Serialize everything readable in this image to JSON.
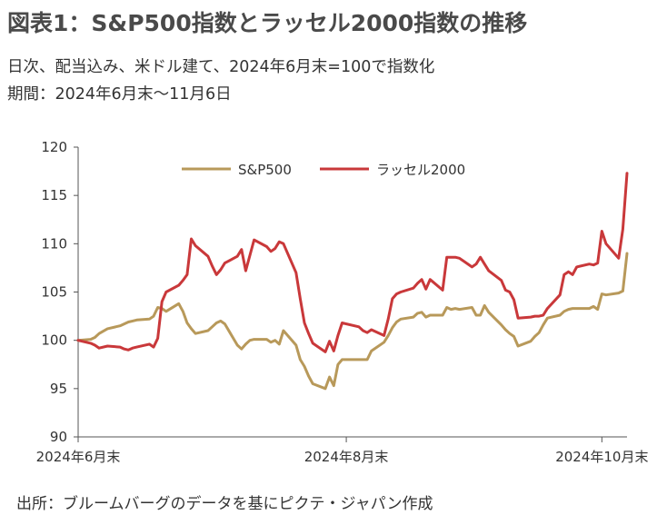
{
  "header": {
    "title": "図表1：S&P500指数とラッセル2000指数の推移",
    "subtitle1": "日次、配当込み、米ドル建て、2024年6月末=100で指数化",
    "subtitle2": "期間：2024年6月末～11月6日"
  },
  "footer": {
    "source": "出所：ブルームバーグのデータを基にピクテ・ジャパン作成"
  },
  "chart_data": {
    "type": "line",
    "title": "図表1：S&P500指数とラッセル2000指数の推移",
    "xlabel": "",
    "ylabel": "",
    "ylim": [
      90,
      120
    ],
    "yticks": [
      90,
      95,
      100,
      105,
      110,
      115,
      120
    ],
    "xlim": [
      "2024-06-28",
      "2024-11-06"
    ],
    "xticks": [
      {
        "date": "2024-06-28",
        "label": "2024年6月末"
      },
      {
        "date": "2024-08-31",
        "label": "2024年8月末"
      },
      {
        "date": "2024-10-31",
        "label": "2024年10月末"
      }
    ],
    "legend": "top-center",
    "grid": false,
    "series": [
      {
        "name": "S&P500",
        "color": "#b8995a",
        "points": [
          [
            "2024-06-28",
            100
          ],
          [
            "2024-07-01",
            100.1
          ],
          [
            "2024-07-02",
            100.3
          ],
          [
            "2024-07-03",
            100.7
          ],
          [
            "2024-07-05",
            101.2
          ],
          [
            "2024-07-08",
            101.5
          ],
          [
            "2024-07-09",
            101.7
          ],
          [
            "2024-07-10",
            101.9
          ],
          [
            "2024-07-11",
            102.0
          ],
          [
            "2024-07-12",
            102.1
          ],
          [
            "2024-07-15",
            102.2
          ],
          [
            "2024-07-16",
            102.5
          ],
          [
            "2024-07-17",
            103.4
          ],
          [
            "2024-07-18",
            103.3
          ],
          [
            "2024-07-19",
            103.0
          ],
          [
            "2024-07-22",
            103.8
          ],
          [
            "2024-07-23",
            103.0
          ],
          [
            "2024-07-24",
            101.8
          ],
          [
            "2024-07-25",
            101.2
          ],
          [
            "2024-07-26",
            100.7
          ],
          [
            "2024-07-29",
            101.0
          ],
          [
            "2024-07-30",
            101.4
          ],
          [
            "2024-07-31",
            101.8
          ],
          [
            "2024-08-01",
            102.0
          ],
          [
            "2024-08-02",
            101.7
          ],
          [
            "2024-08-05",
            99.5
          ],
          [
            "2024-08-06",
            99.1
          ],
          [
            "2024-08-07",
            99.6
          ],
          [
            "2024-08-08",
            100.0
          ],
          [
            "2024-08-09",
            100.1
          ],
          [
            "2024-08-12",
            100.1
          ],
          [
            "2024-08-13",
            99.8
          ],
          [
            "2024-08-14",
            100.0
          ],
          [
            "2024-08-15",
            99.6
          ],
          [
            "2024-08-16",
            101.0
          ],
          [
            "2024-08-19",
            99.5
          ],
          [
            "2024-08-20",
            98.0
          ],
          [
            "2024-08-21",
            97.3
          ],
          [
            "2024-08-22",
            96.3
          ],
          [
            "2024-08-23",
            95.5
          ],
          [
            "2024-08-26",
            95.0
          ],
          [
            "2024-08-27",
            96.2
          ],
          [
            "2024-08-28",
            95.3
          ],
          [
            "2024-08-29",
            97.5
          ],
          [
            "2024-08-30",
            98.0
          ],
          [
            "2024-09-03",
            98.0
          ],
          [
            "2024-09-04",
            98.0
          ],
          [
            "2024-09-05",
            98.0
          ],
          [
            "2024-09-06",
            98.9
          ],
          [
            "2024-09-09",
            99.8
          ],
          [
            "2024-09-10",
            100.5
          ],
          [
            "2024-09-11",
            101.3
          ],
          [
            "2024-09-12",
            101.9
          ],
          [
            "2024-09-13",
            102.2
          ],
          [
            "2024-09-16",
            102.4
          ],
          [
            "2024-09-17",
            102.8
          ],
          [
            "2024-09-18",
            102.9
          ],
          [
            "2024-09-19",
            102.4
          ],
          [
            "2024-09-20",
            102.6
          ],
          [
            "2024-09-23",
            102.6
          ],
          [
            "2024-09-24",
            103.4
          ],
          [
            "2024-09-25",
            103.2
          ],
          [
            "2024-09-26",
            103.3
          ],
          [
            "2024-09-27",
            103.2
          ],
          [
            "2024-09-30",
            103.4
          ],
          [
            "2024-10-01",
            102.6
          ],
          [
            "2024-10-02",
            102.6
          ],
          [
            "2024-10-03",
            103.6
          ],
          [
            "2024-10-04",
            102.9
          ],
          [
            "2024-10-07",
            101.6
          ],
          [
            "2024-10-08",
            101.1
          ],
          [
            "2024-10-09",
            100.7
          ],
          [
            "2024-10-10",
            100.4
          ],
          [
            "2024-10-11",
            99.4
          ],
          [
            "2024-10-14",
            99.9
          ],
          [
            "2024-10-15",
            100.4
          ],
          [
            "2024-10-16",
            100.8
          ],
          [
            "2024-10-17",
            101.6
          ],
          [
            "2024-10-18",
            102.3
          ],
          [
            "2024-10-21",
            102.6
          ],
          [
            "2024-10-22",
            103.0
          ],
          [
            "2024-10-23",
            103.2
          ],
          [
            "2024-10-24",
            103.3
          ],
          [
            "2024-10-25",
            103.3
          ],
          [
            "2024-10-28",
            103.3
          ],
          [
            "2024-10-29",
            103.5
          ],
          [
            "2024-10-30",
            103.2
          ],
          [
            "2024-10-31",
            104.8
          ],
          [
            "2024-11-01",
            104.7
          ],
          [
            "2024-11-04",
            104.9
          ],
          [
            "2024-11-05",
            105.1
          ],
          [
            "2024-11-06",
            109.0
          ]
        ]
      },
      {
        "name": "ラッセル2000",
        "color": "#c9383a",
        "points": [
          [
            "2024-06-28",
            100
          ],
          [
            "2024-07-01",
            99.7
          ],
          [
            "2024-07-02",
            99.5
          ],
          [
            "2024-07-03",
            99.2
          ],
          [
            "2024-07-05",
            99.4
          ],
          [
            "2024-07-08",
            99.3
          ],
          [
            "2024-07-09",
            99.1
          ],
          [
            "2024-07-10",
            99.0
          ],
          [
            "2024-07-11",
            99.2
          ],
          [
            "2024-07-12",
            99.3
          ],
          [
            "2024-07-15",
            99.6
          ],
          [
            "2024-07-16",
            99.3
          ],
          [
            "2024-07-17",
            100.2
          ],
          [
            "2024-07-18",
            104.0
          ],
          [
            "2024-07-19",
            105.0
          ],
          [
            "2024-07-22",
            105.7
          ],
          [
            "2024-07-23",
            106.2
          ],
          [
            "2024-07-24",
            106.8
          ],
          [
            "2024-07-25",
            110.5
          ],
          [
            "2024-07-26",
            109.8
          ],
          [
            "2024-07-29",
            108.7
          ],
          [
            "2024-07-30",
            107.7
          ],
          [
            "2024-07-31",
            106.8
          ],
          [
            "2024-08-01",
            107.3
          ],
          [
            "2024-08-02",
            108.0
          ],
          [
            "2024-08-05",
            108.7
          ],
          [
            "2024-08-06",
            109.4
          ],
          [
            "2024-08-07",
            107.2
          ],
          [
            "2024-08-08",
            108.8
          ],
          [
            "2024-08-09",
            110.4
          ],
          [
            "2024-08-12",
            109.7
          ],
          [
            "2024-08-13",
            109.2
          ],
          [
            "2024-08-14",
            109.5
          ],
          [
            "2024-08-15",
            110.2
          ],
          [
            "2024-08-16",
            110.0
          ],
          [
            "2024-08-19",
            107.0
          ],
          [
            "2024-08-20",
            104.3
          ],
          [
            "2024-08-21",
            101.8
          ],
          [
            "2024-08-22",
            100.7
          ],
          [
            "2024-08-23",
            99.7
          ],
          [
            "2024-08-26",
            98.8
          ],
          [
            "2024-08-27",
            99.9
          ],
          [
            "2024-08-28",
            98.9
          ],
          [
            "2024-08-29",
            100.5
          ],
          [
            "2024-08-30",
            101.8
          ],
          [
            "2024-09-03",
            101.4
          ],
          [
            "2024-09-04",
            101.0
          ],
          [
            "2024-09-05",
            100.8
          ],
          [
            "2024-09-06",
            101.1
          ],
          [
            "2024-09-09",
            100.5
          ],
          [
            "2024-09-10",
            102.2
          ],
          [
            "2024-09-11",
            104.3
          ],
          [
            "2024-09-12",
            104.8
          ],
          [
            "2024-09-13",
            105.0
          ],
          [
            "2024-09-16",
            105.4
          ],
          [
            "2024-09-17",
            105.9
          ],
          [
            "2024-09-18",
            106.3
          ],
          [
            "2024-09-19",
            105.3
          ],
          [
            "2024-09-20",
            106.3
          ],
          [
            "2024-09-23",
            105.2
          ],
          [
            "2024-09-24",
            108.6
          ],
          [
            "2024-09-25",
            108.6
          ],
          [
            "2024-09-26",
            108.6
          ],
          [
            "2024-09-27",
            108.5
          ],
          [
            "2024-09-30",
            107.6
          ],
          [
            "2024-10-01",
            107.9
          ],
          [
            "2024-10-02",
            108.6
          ],
          [
            "2024-10-03",
            107.9
          ],
          [
            "2024-10-04",
            107.2
          ],
          [
            "2024-10-07",
            106.2
          ],
          [
            "2024-10-08",
            105.2
          ],
          [
            "2024-10-09",
            105.0
          ],
          [
            "2024-10-10",
            104.2
          ],
          [
            "2024-10-11",
            102.3
          ],
          [
            "2024-10-14",
            102.4
          ],
          [
            "2024-10-15",
            102.5
          ],
          [
            "2024-10-16",
            102.5
          ],
          [
            "2024-10-17",
            102.6
          ],
          [
            "2024-10-18",
            103.3
          ],
          [
            "2024-10-21",
            104.7
          ],
          [
            "2024-10-22",
            106.8
          ],
          [
            "2024-10-23",
            107.1
          ],
          [
            "2024-10-24",
            106.8
          ],
          [
            "2024-10-25",
            107.6
          ],
          [
            "2024-10-28",
            107.9
          ],
          [
            "2024-10-29",
            107.8
          ],
          [
            "2024-10-30",
            108.0
          ],
          [
            "2024-10-31",
            111.3
          ],
          [
            "2024-11-01",
            110.0
          ],
          [
            "2024-11-04",
            108.5
          ],
          [
            "2024-11-05",
            111.5
          ],
          [
            "2024-11-06",
            117.3
          ]
        ]
      }
    ]
  }
}
